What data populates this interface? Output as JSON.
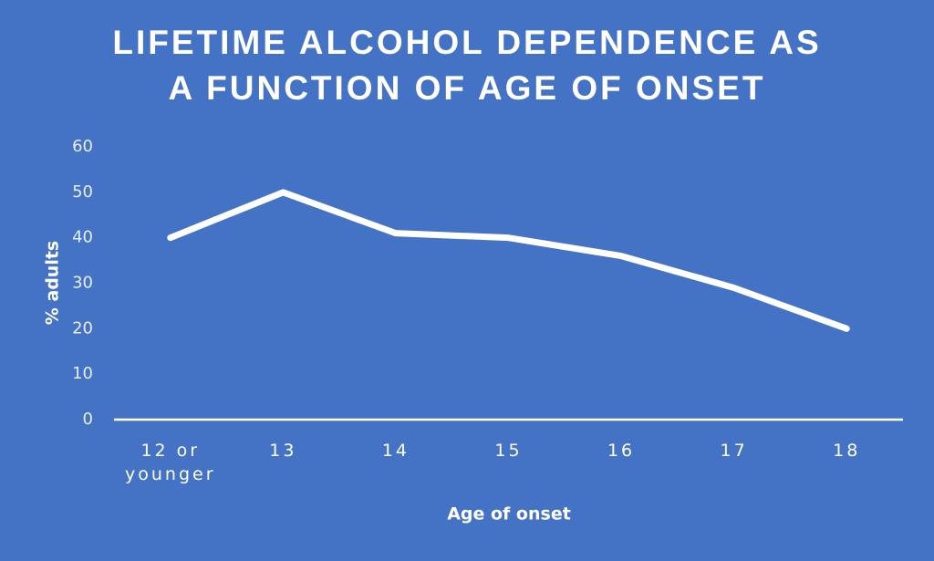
{
  "chart_data": {
    "type": "line",
    "title": "LIFETIME ALCOHOL DEPENDENCE AS A FUNCTION OF AGE OF ONSET",
    "x_label": "Age of onset",
    "y_label": "% adults",
    "categories": [
      "12 or younger",
      "13",
      "14",
      "15",
      "16",
      "17",
      "18"
    ],
    "values": [
      40,
      50,
      41,
      40,
      36,
      29,
      20
    ],
    "color": "#ffffff",
    "ylim": [
      0,
      60
    ],
    "yticks": [
      0,
      10,
      20,
      30,
      40,
      50,
      60
    ],
    "grid": false,
    "drop_lines": true
  }
}
